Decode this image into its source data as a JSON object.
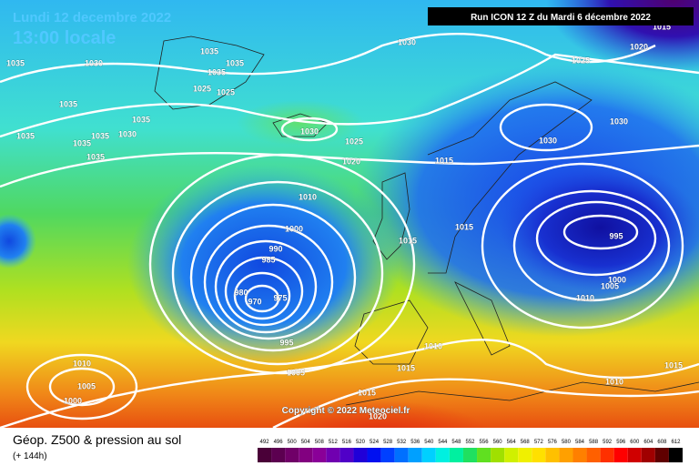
{
  "header": {
    "date": "Lundi 12 decembre 2022",
    "time": "13:00 locale",
    "run": "Run ICON 12 Z du Mardi 6 décembre 2022"
  },
  "copyright": "Copyright © 2022 Meteociel.fr",
  "footer": {
    "title": "Géop. Z500 & pression au sol",
    "subtitle": "(+ 144h)"
  },
  "isobar_labels": [
    "1035",
    "1030",
    "1035",
    "1035",
    "1035",
    "1025",
    "1025",
    "1035",
    "1035",
    "1035",
    "1035",
    "1030",
    "1035",
    "1035",
    "1030",
    "1025",
    "1020",
    "1030",
    "1025",
    "1020",
    "1030",
    "1030",
    "1015",
    "1010",
    "1000",
    "1015",
    "1015",
    "995",
    "990",
    "985",
    "980",
    "970",
    "975",
    "1000",
    "1005",
    "1010",
    "995",
    "1010",
    "1005",
    "1015",
    "1010",
    "1005",
    "1000",
    "1015",
    "1020",
    "1010",
    "1015",
    "1015"
  ],
  "colorbar": {
    "levels": [
      492,
      496,
      500,
      504,
      508,
      512,
      516,
      520,
      524,
      528,
      532,
      536,
      540,
      544,
      548,
      552,
      556,
      560,
      564,
      568,
      572,
      576,
      580,
      584,
      588,
      592,
      596,
      600,
      604,
      608,
      612
    ],
    "colors": [
      "#4a0038",
      "#5c0050",
      "#700068",
      "#820080",
      "#8a0098",
      "#7000b0",
      "#5000c8",
      "#2000d8",
      "#0010f0",
      "#0040ff",
      "#0070ff",
      "#00a0ff",
      "#00d0ff",
      "#00f0e0",
      "#00f0a0",
      "#20e060",
      "#60e020",
      "#a0e000",
      "#d0f000",
      "#f0f000",
      "#ffe000",
      "#ffc000",
      "#ffa000",
      "#ff8000",
      "#ff6000",
      "#ff3000",
      "#ff0000",
      "#d00000",
      "#a00000",
      "#600000",
      "#000000"
    ]
  }
}
